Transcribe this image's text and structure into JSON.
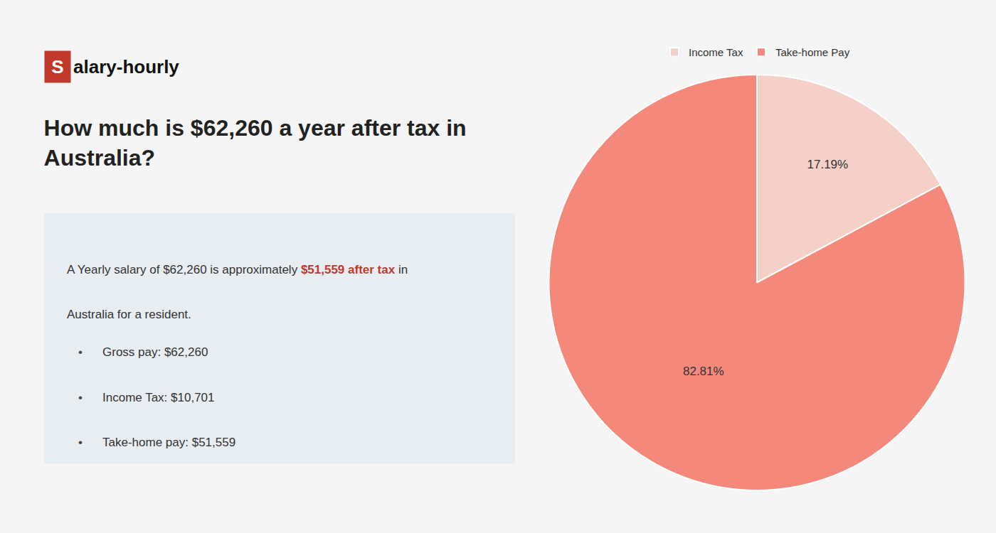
{
  "chart_data": {
    "type": "pie",
    "title": "How much is $62,260 a year after tax in\nAustralia?",
    "categories": [
      "Income Tax",
      "Take-home Pay"
    ],
    "values": [
      17.19,
      82.81
    ],
    "value_labels": [
      "17.19%",
      "82.81%"
    ],
    "colors": [
      "#f5d0c8",
      "#f4897b"
    ],
    "data_labels": true,
    "legend": "top",
    "annotations": [
      [
        {
          "text": "S",
          "color": "#c0392b"
        },
        {
          "text": "alary-hourly"
        }
      ],
      [
        {
          "text": "A Yearly salary of $62,260 is approximately "
        },
        {
          "text": "$51,559 after tax",
          "color": "#c0392b"
        },
        {
          "text": " in"
        }
      ],
      [
        {
          "text": "Australia for a resident."
        }
      ],
      [
        {
          "text": "•"
        },
        {
          "text": "Gross pay: $62,260"
        }
      ],
      [
        {
          "text": "•"
        },
        {
          "text": "Income Tax: $10,701"
        }
      ],
      [
        {
          "text": "•"
        },
        {
          "text": "Take-home pay: $51,559"
        }
      ]
    ]
  }
}
